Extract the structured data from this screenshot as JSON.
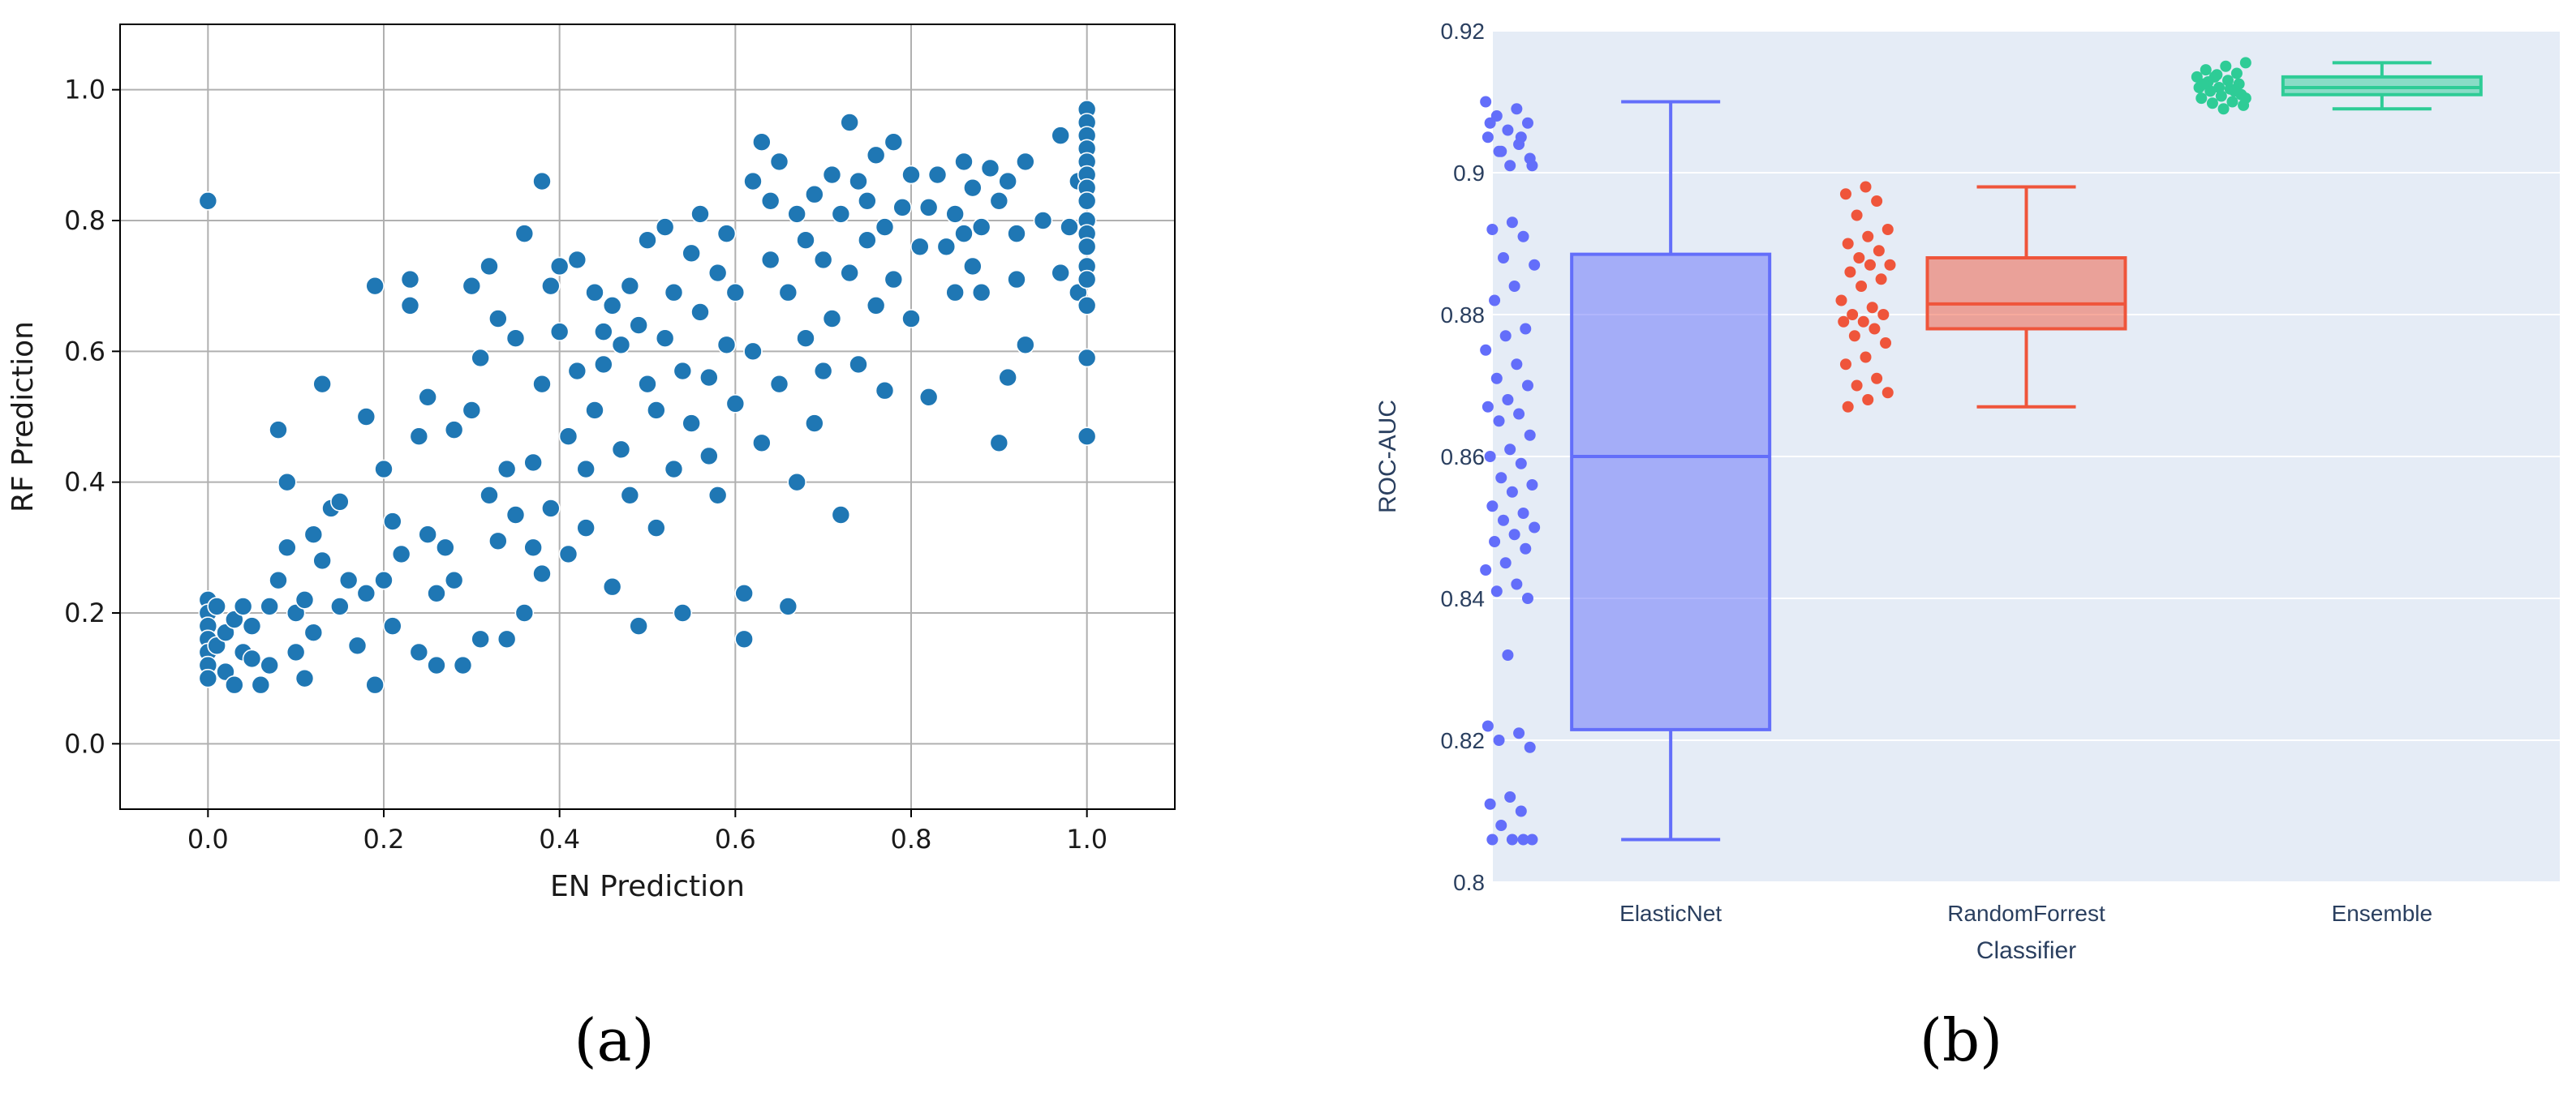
{
  "chart_data": [
    {
      "type": "scatter",
      "caption": "(a)",
      "xlabel": "EN Prediction",
      "ylabel": "RF Prediction",
      "xlim": [
        -0.1,
        1.1
      ],
      "ylim": [
        -0.1,
        1.1
      ],
      "xticks": [
        "0.0",
        "0.2",
        "0.4",
        "0.6",
        "0.8",
        "1.0"
      ],
      "yticks": [
        "0.0",
        "0.2",
        "0.4",
        "0.6",
        "0.8",
        "1.0"
      ],
      "grid": true,
      "color": "#1f77b4",
      "points": [
        [
          0.0,
          0.83
        ],
        [
          0.0,
          0.22
        ],
        [
          0.0,
          0.2
        ],
        [
          0.0,
          0.18
        ],
        [
          0.0,
          0.16
        ],
        [
          0.0,
          0.14
        ],
        [
          0.0,
          0.12
        ],
        [
          0.0,
          0.1
        ],
        [
          0.01,
          0.21
        ],
        [
          0.01,
          0.15
        ],
        [
          0.02,
          0.11
        ],
        [
          0.02,
          0.17
        ],
        [
          0.03,
          0.19
        ],
        [
          0.03,
          0.09
        ],
        [
          0.04,
          0.14
        ],
        [
          0.04,
          0.21
        ],
        [
          0.05,
          0.13
        ],
        [
          0.05,
          0.18
        ],
        [
          0.06,
          0.09
        ],
        [
          0.07,
          0.12
        ],
        [
          0.07,
          0.21
        ],
        [
          0.08,
          0.25
        ],
        [
          0.08,
          0.48
        ],
        [
          0.09,
          0.4
        ],
        [
          0.09,
          0.3
        ],
        [
          0.1,
          0.2
        ],
        [
          0.1,
          0.14
        ],
        [
          0.11,
          0.1
        ],
        [
          0.11,
          0.22
        ],
        [
          0.12,
          0.32
        ],
        [
          0.12,
          0.17
        ],
        [
          0.13,
          0.28
        ],
        [
          0.13,
          0.55
        ],
        [
          0.14,
          0.36
        ],
        [
          0.15,
          0.21
        ],
        [
          0.15,
          0.37
        ],
        [
          0.16,
          0.25
        ],
        [
          0.17,
          0.15
        ],
        [
          0.18,
          0.23
        ],
        [
          0.18,
          0.5
        ],
        [
          0.19,
          0.7
        ],
        [
          0.19,
          0.09
        ],
        [
          0.2,
          0.25
        ],
        [
          0.2,
          0.42
        ],
        [
          0.21,
          0.18
        ],
        [
          0.21,
          0.34
        ],
        [
          0.22,
          0.29
        ],
        [
          0.23,
          0.67
        ],
        [
          0.23,
          0.71
        ],
        [
          0.24,
          0.14
        ],
        [
          0.24,
          0.47
        ],
        [
          0.25,
          0.32
        ],
        [
          0.25,
          0.53
        ],
        [
          0.26,
          0.23
        ],
        [
          0.26,
          0.12
        ],
        [
          0.27,
          0.3
        ],
        [
          0.28,
          0.48
        ],
        [
          0.28,
          0.25
        ],
        [
          0.29,
          0.12
        ],
        [
          0.3,
          0.7
        ],
        [
          0.3,
          0.51
        ],
        [
          0.31,
          0.59
        ],
        [
          0.31,
          0.16
        ],
        [
          0.32,
          0.73
        ],
        [
          0.32,
          0.38
        ],
        [
          0.33,
          0.65
        ],
        [
          0.33,
          0.31
        ],
        [
          0.34,
          0.42
        ],
        [
          0.34,
          0.16
        ],
        [
          0.35,
          0.62
        ],
        [
          0.35,
          0.35
        ],
        [
          0.36,
          0.78
        ],
        [
          0.36,
          0.2
        ],
        [
          0.37,
          0.43
        ],
        [
          0.37,
          0.3
        ],
        [
          0.38,
          0.86
        ],
        [
          0.38,
          0.55
        ],
        [
          0.38,
          0.26
        ],
        [
          0.39,
          0.7
        ],
        [
          0.39,
          0.36
        ],
        [
          0.4,
          0.73
        ],
        [
          0.4,
          0.63
        ],
        [
          0.41,
          0.29
        ],
        [
          0.41,
          0.47
        ],
        [
          0.42,
          0.74
        ],
        [
          0.42,
          0.57
        ],
        [
          0.43,
          0.42
        ],
        [
          0.43,
          0.33
        ],
        [
          0.44,
          0.69
        ],
        [
          0.44,
          0.51
        ],
        [
          0.45,
          0.63
        ],
        [
          0.45,
          0.58
        ],
        [
          0.46,
          0.67
        ],
        [
          0.46,
          0.24
        ],
        [
          0.47,
          0.61
        ],
        [
          0.47,
          0.45
        ],
        [
          0.48,
          0.7
        ],
        [
          0.48,
          0.38
        ],
        [
          0.49,
          0.64
        ],
        [
          0.49,
          0.18
        ],
        [
          0.5,
          0.77
        ],
        [
          0.5,
          0.55
        ],
        [
          0.51,
          0.33
        ],
        [
          0.51,
          0.51
        ],
        [
          0.52,
          0.79
        ],
        [
          0.52,
          0.62
        ],
        [
          0.53,
          0.69
        ],
        [
          0.53,
          0.42
        ],
        [
          0.54,
          0.2
        ],
        [
          0.54,
          0.57
        ],
        [
          0.55,
          0.75
        ],
        [
          0.55,
          0.49
        ],
        [
          0.56,
          0.81
        ],
        [
          0.56,
          0.66
        ],
        [
          0.57,
          0.56
        ],
        [
          0.57,
          0.44
        ],
        [
          0.58,
          0.72
        ],
        [
          0.58,
          0.38
        ],
        [
          0.59,
          0.78
        ],
        [
          0.59,
          0.61
        ],
        [
          0.6,
          0.69
        ],
        [
          0.6,
          0.52
        ],
        [
          0.61,
          0.23
        ],
        [
          0.61,
          0.16
        ],
        [
          0.62,
          0.86
        ],
        [
          0.62,
          0.6
        ],
        [
          0.63,
          0.92
        ],
        [
          0.63,
          0.46
        ],
        [
          0.64,
          0.83
        ],
        [
          0.64,
          0.74
        ],
        [
          0.65,
          0.89
        ],
        [
          0.65,
          0.55
        ],
        [
          0.66,
          0.69
        ],
        [
          0.66,
          0.21
        ],
        [
          0.67,
          0.81
        ],
        [
          0.67,
          0.4
        ],
        [
          0.68,
          0.77
        ],
        [
          0.68,
          0.62
        ],
        [
          0.69,
          0.84
        ],
        [
          0.69,
          0.49
        ],
        [
          0.7,
          0.74
        ],
        [
          0.7,
          0.57
        ],
        [
          0.71,
          0.87
        ],
        [
          0.71,
          0.65
        ],
        [
          0.72,
          0.81
        ],
        [
          0.72,
          0.35
        ],
        [
          0.73,
          0.95
        ],
        [
          0.73,
          0.72
        ],
        [
          0.74,
          0.86
        ],
        [
          0.74,
          0.58
        ],
        [
          0.75,
          0.77
        ],
        [
          0.75,
          0.83
        ],
        [
          0.76,
          0.9
        ],
        [
          0.76,
          0.67
        ],
        [
          0.77,
          0.79
        ],
        [
          0.77,
          0.54
        ],
        [
          0.78,
          0.92
        ],
        [
          0.78,
          0.71
        ],
        [
          0.79,
          0.82
        ],
        [
          0.8,
          0.87
        ],
        [
          0.8,
          0.65
        ],
        [
          0.81,
          0.76
        ],
        [
          0.82,
          0.82
        ],
        [
          0.82,
          0.53
        ],
        [
          0.83,
          0.87
        ],
        [
          0.84,
          0.76
        ],
        [
          0.85,
          0.81
        ],
        [
          0.85,
          0.69
        ],
        [
          0.86,
          0.89
        ],
        [
          0.86,
          0.78
        ],
        [
          0.87,
          0.85
        ],
        [
          0.87,
          0.73
        ],
        [
          0.88,
          0.79
        ],
        [
          0.88,
          0.69
        ],
        [
          0.89,
          0.88
        ],
        [
          0.9,
          0.83
        ],
        [
          0.9,
          0.46
        ],
        [
          0.91,
          0.86
        ],
        [
          0.91,
          0.56
        ],
        [
          0.92,
          0.78
        ],
        [
          0.92,
          0.71
        ],
        [
          0.93,
          0.89
        ],
        [
          0.93,
          0.61
        ],
        [
          0.95,
          0.8
        ],
        [
          0.97,
          0.93
        ],
        [
          0.97,
          0.72
        ],
        [
          0.98,
          0.79
        ],
        [
          0.99,
          0.86
        ],
        [
          0.99,
          0.69
        ],
        [
          1.0,
          0.97
        ],
        [
          1.0,
          0.95
        ],
        [
          1.0,
          0.93
        ],
        [
          1.0,
          0.91
        ],
        [
          1.0,
          0.89
        ],
        [
          1.0,
          0.87
        ],
        [
          1.0,
          0.85
        ],
        [
          1.0,
          0.83
        ],
        [
          1.0,
          0.8
        ],
        [
          1.0,
          0.78
        ],
        [
          1.0,
          0.76
        ],
        [
          1.0,
          0.73
        ],
        [
          1.0,
          0.71
        ],
        [
          1.0,
          0.67
        ],
        [
          1.0,
          0.59
        ],
        [
          1.0,
          0.47
        ]
      ]
    },
    {
      "type": "box",
      "caption": "(b)",
      "xlabel": "Classifier",
      "ylabel": "ROC-AUC",
      "ylim": [
        0.8,
        0.92
      ],
      "yticks": [
        "0.8",
        "0.82",
        "0.84",
        "0.86",
        "0.88",
        "0.9",
        "0.92"
      ],
      "categories": [
        "ElasticNet",
        "RandomForrest",
        "Ensemble"
      ],
      "series": [
        {
          "category": "ElasticNet",
          "color": "#636efa",
          "fill": "rgba(99,110,250,0.5)",
          "min": 0.806,
          "q1": 0.8215,
          "median": 0.86,
          "q3": 0.8885,
          "max": 0.91,
          "points": [
            0.91,
            0.909,
            0.908,
            0.907,
            0.906,
            0.905,
            0.904,
            0.903,
            0.902,
            0.901,
            0.907,
            0.905,
            0.903,
            0.901,
            0.893,
            0.892,
            0.891,
            0.888,
            0.887,
            0.884,
            0.882,
            0.878,
            0.877,
            0.875,
            0.873,
            0.871,
            0.87,
            0.868,
            0.867,
            0.866,
            0.865,
            0.863,
            0.861,
            0.86,
            0.859,
            0.857,
            0.856,
            0.855,
            0.853,
            0.852,
            0.851,
            0.85,
            0.849,
            0.848,
            0.847,
            0.845,
            0.844,
            0.842,
            0.841,
            0.84,
            0.832,
            0.822,
            0.821,
            0.82,
            0.819,
            0.812,
            0.811,
            0.81,
            0.808,
            0.806,
            0.806,
            0.806,
            0.806
          ]
        },
        {
          "category": "RandomForrest",
          "color": "#ef553b",
          "fill": "rgba(239,85,59,0.5)",
          "min": 0.867,
          "q1": 0.878,
          "median": 0.8815,
          "q3": 0.888,
          "max": 0.898,
          "points": [
            0.898,
            0.897,
            0.896,
            0.894,
            0.892,
            0.891,
            0.89,
            0.889,
            0.888,
            0.887,
            0.887,
            0.886,
            0.885,
            0.884,
            0.882,
            0.881,
            0.88,
            0.88,
            0.879,
            0.879,
            0.878,
            0.877,
            0.876,
            0.874,
            0.873,
            0.871,
            0.87,
            0.869,
            0.868,
            0.867
          ]
        },
        {
          "category": "Ensemble",
          "color": "#2ecc96",
          "fill": "rgba(46,204,150,0.5)",
          "min": 0.909,
          "q1": 0.911,
          "median": 0.912,
          "q3": 0.9135,
          "max": 0.9155,
          "points": [
            0.9155,
            0.915,
            0.9145,
            0.914,
            0.9138,
            0.9135,
            0.913,
            0.9128,
            0.9125,
            0.912,
            0.912,
            0.9118,
            0.9115,
            0.911,
            0.9108,
            0.9105,
            0.91,
            0.9098,
            0.9095,
            0.909,
            0.9125,
            0.9115,
            0.9135,
            0.9105
          ]
        }
      ]
    }
  ]
}
